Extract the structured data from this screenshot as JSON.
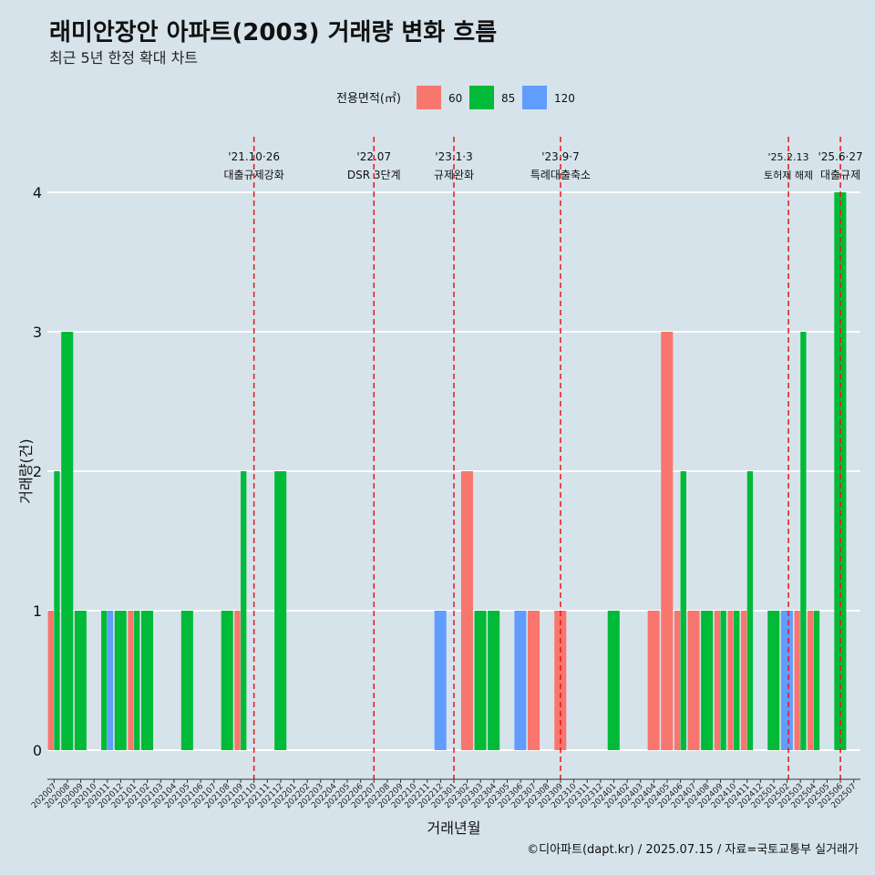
{
  "title": "래미안장안 아파트(2003) 거래량 변화 흐름",
  "subtitle": "최근 5년 한정 확대 차트",
  "caption": "©디아파트(dapt.kr) / 2025.07.15 / 자료=국토교통부 실거래가",
  "colors": {
    "60": "#f8766d",
    "85": "#00ba38",
    "120": "#619cff",
    "event_line": "#e8171b",
    "background": "#d6e3ea",
    "grid": "#ffffff"
  },
  "chart_data": {
    "type": "bar",
    "title": "래미안장안 아파트(2003) 거래량 변화 흐름",
    "subtitle": "최근 5년 한정 확대 차트",
    "xlabel": "거래년월",
    "ylabel": "거래량(건)",
    "ylim": [
      0,
      4
    ],
    "yticks": [
      0,
      1,
      2,
      3,
      4
    ],
    "grid": true,
    "legend": {
      "title": "전용면적(㎡)",
      "position": "top",
      "entries": [
        "60",
        "85",
        "120"
      ]
    },
    "months": [
      "202007",
      "202008",
      "202009",
      "202010",
      "202011",
      "202012",
      "202101",
      "202102",
      "202103",
      "202104",
      "202105",
      "202106",
      "202107",
      "202108",
      "202109",
      "202110",
      "202111",
      "202112",
      "202201",
      "202202",
      "202203",
      "202204",
      "202205",
      "202206",
      "202207",
      "202208",
      "202209",
      "202210",
      "202211",
      "202212",
      "202301",
      "202302",
      "202303",
      "202304",
      "202305",
      "202306",
      "202307",
      "202308",
      "202309",
      "202310",
      "202311",
      "202312",
      "202401",
      "202402",
      "202403",
      "202404",
      "202405",
      "202406",
      "202407",
      "202408",
      "202409",
      "202410",
      "202411",
      "202412",
      "202501",
      "202502",
      "202503",
      "202504",
      "202505",
      "202506",
      "202507"
    ],
    "series": [
      {
        "name": "60",
        "points": {
          "202007": 1,
          "202101": 1,
          "202109": 1,
          "202302": 2,
          "202307": 1,
          "202309": 1,
          "202404": 1,
          "202405": 3,
          "202406": 1,
          "202407": 1,
          "202409": 1,
          "202410": 1,
          "202411": 1,
          "202503": 1,
          "202504": 1
        }
      },
      {
        "name": "85",
        "points": {
          "202007": 2,
          "202008": 3,
          "202009": 1,
          "202011": 1,
          "202012": 1,
          "202101": 1,
          "202102": 1,
          "202105": 1,
          "202108": 1,
          "202109": 2,
          "202112": 2,
          "202303": 1,
          "202304": 1,
          "202401": 1,
          "202406": 2,
          "202408": 1,
          "202409": 1,
          "202410": 1,
          "202411": 2,
          "202501": 1,
          "202503": 3,
          "202504": 1,
          "202506": 4
        }
      },
      {
        "name": "120",
        "points": {
          "202011": 1,
          "202212": 1,
          "202306": 1,
          "202502": 1
        }
      }
    ],
    "events": [
      {
        "month_pos": 15.5,
        "date": "'21.10·26",
        "label": "대출규제강화",
        "small": false
      },
      {
        "month_pos": 24.5,
        "date": "'22.07",
        "label": "DSR 3단계",
        "small": false
      },
      {
        "month_pos": 30.5,
        "date": "'23.1·3",
        "label": "규제완화",
        "small": false
      },
      {
        "month_pos": 38.5,
        "date": "'23.9·7",
        "label": "특례대출축소",
        "small": false
      },
      {
        "month_pos": 55.6,
        "date": "'25.2.13",
        "label": "토허제 해제",
        "small": true
      },
      {
        "month_pos": 59.5,
        "date": "'25.6·27",
        "label": "대출규제",
        "small": false
      }
    ]
  }
}
